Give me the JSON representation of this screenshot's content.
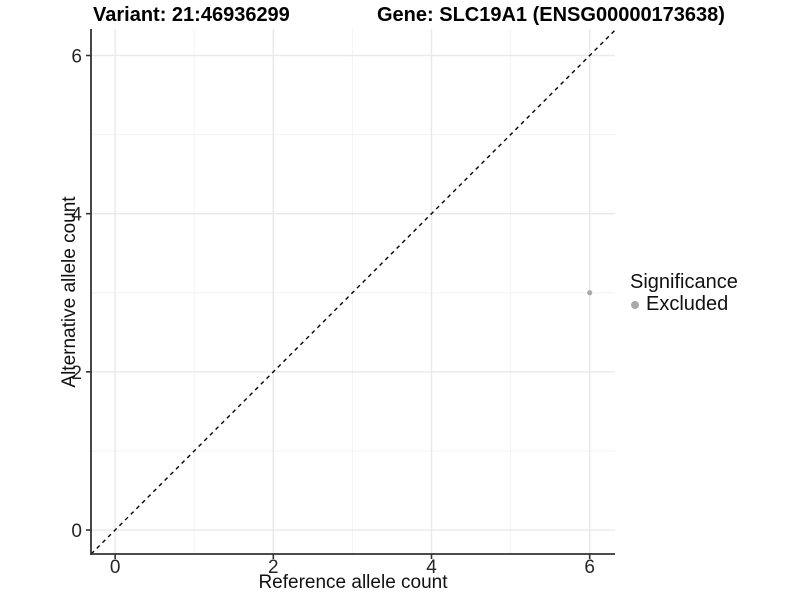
{
  "chart_data": {
    "type": "scatter",
    "title_left": "Variant: 21:46936299",
    "title_right": "Gene: SLC19A1 (ENSG00000173638)",
    "xlabel": "Reference allele count",
    "ylabel": "Alternative allele count",
    "xlim": [
      -0.305,
      6.32
    ],
    "ylim": [
      -0.303,
      6.335
    ],
    "xticks": [
      0,
      2,
      4,
      6
    ],
    "yticks": [
      0,
      2,
      4,
      6
    ],
    "minor_xticks": [
      1,
      3,
      5
    ],
    "minor_yticks": [
      1,
      3,
      5
    ],
    "grid": "major and minor, light gray, on white panel",
    "series": [
      {
        "name": "Excluded",
        "color": "#ababab",
        "points": [
          {
            "x": 6,
            "y": 3
          }
        ]
      }
    ],
    "reference_line": {
      "type": "identity y=x",
      "style": "dashed",
      "color": "#000000"
    },
    "legend": {
      "title": "Significance",
      "position": "right",
      "items": [
        {
          "label": "Excluded",
          "color": "#a9a9a9",
          "marker": "circle"
        }
      ]
    },
    "colors": {
      "background": "#ffffff",
      "grid_major": "#e9e9e9",
      "grid_minor": "#f4f4f4",
      "axis_line": "#333333",
      "tick_text": "#262626",
      "point": "#ababab"
    }
  }
}
